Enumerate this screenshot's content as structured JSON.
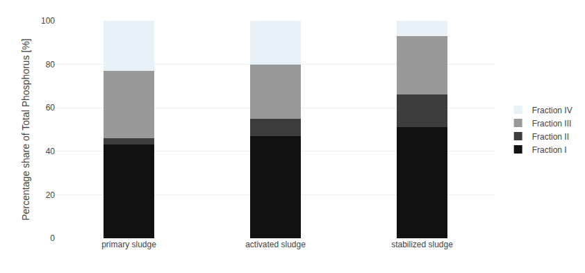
{
  "chart_data": {
    "type": "bar",
    "stacked": true,
    "categories": [
      "primary sludge",
      "activated sludge",
      "stabilized sludge"
    ],
    "series": [
      {
        "name": "Fraction I",
        "color": "#111111",
        "values": [
          43,
          47,
          51
        ]
      },
      {
        "name": "Fraction II",
        "color": "#3d3d3d",
        "values": [
          3,
          8,
          15
        ]
      },
      {
        "name": "Fraction III",
        "color": "#999999",
        "values": [
          31,
          25,
          27
        ]
      },
      {
        "name": "Fraction IV",
        "color": "#e8f0f8",
        "values": [
          23,
          20,
          7
        ]
      }
    ],
    "ylabel": "Percentage share of Total Phosphorus [%]",
    "ylim": [
      0,
      100
    ],
    "yticks": [
      0,
      20,
      40,
      60,
      80,
      100
    ],
    "grid": true,
    "legend": "right"
  }
}
